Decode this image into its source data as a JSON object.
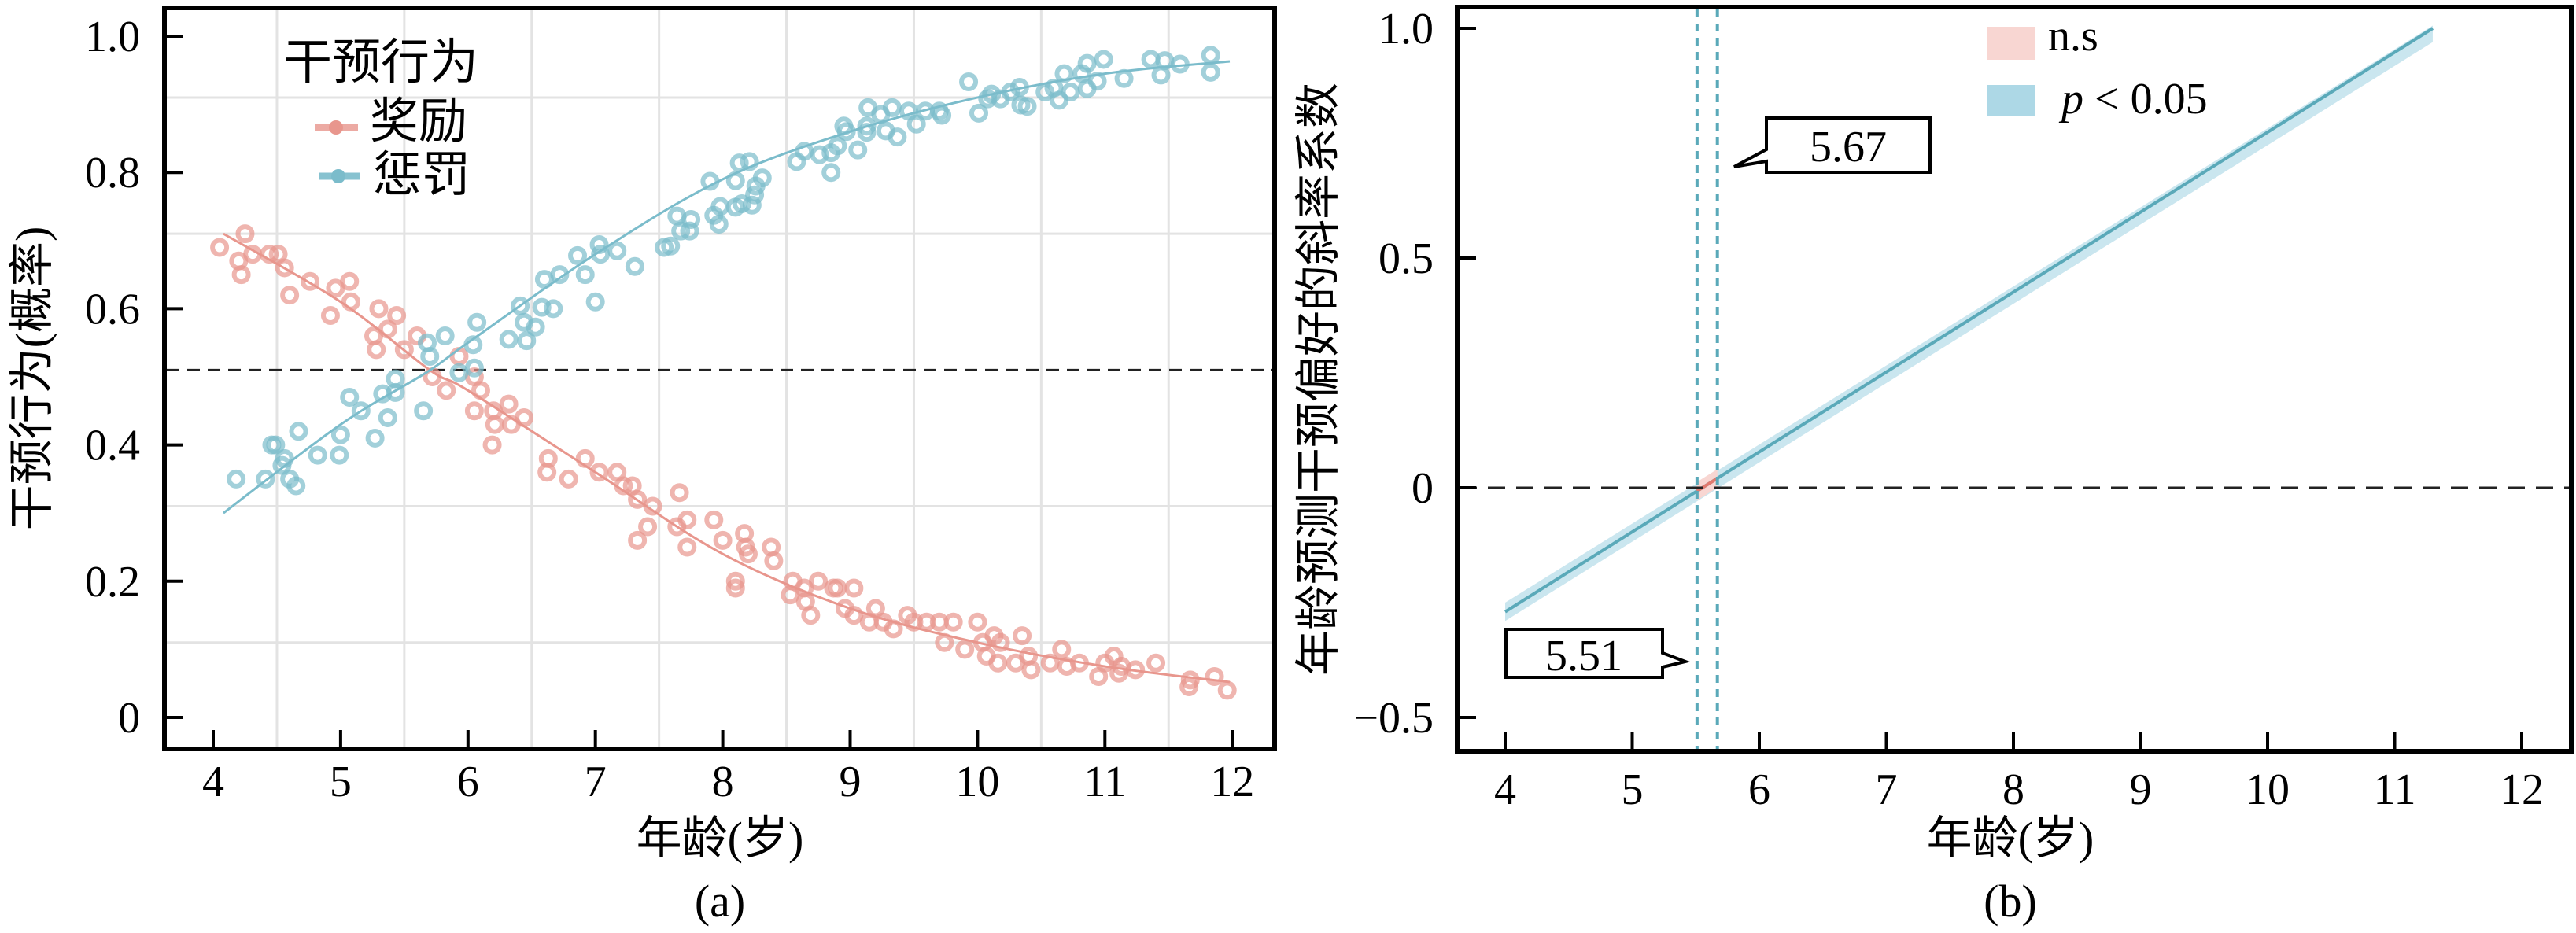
{
  "colors": {
    "reward": "#e8968d",
    "punish": "#7bbccb",
    "ns_band": "#f8d6d2",
    "sig_band": "#add8e6",
    "sig_line": "#5aa9b9"
  },
  "chart_data": [
    {
      "type": "scatter",
      "panel_label": "(a)",
      "xlabel": "年龄(岁)",
      "ylabel": "干预行为(概率)",
      "xlim": [
        3.7,
        12.4
      ],
      "ylim": [
        -0.02,
        1.06
      ],
      "xticks": [
        "4",
        "5",
        "6",
        "7",
        "8",
        "9",
        "10",
        "11",
        "12"
      ],
      "yticks": [
        "0",
        "0.2",
        "0.4",
        "0.6",
        "0.8",
        "1.0"
      ],
      "grid": true,
      "reference_line_y": 0.51,
      "legend": {
        "title": "干预行为",
        "position": "top-left",
        "entries": [
          "奖励",
          "惩罚"
        ]
      },
      "series": [
        {
          "name": "奖励",
          "fit": [
            [
              4.08,
              0.71
            ],
            [
              5,
              0.61
            ],
            [
              5.7,
              0.51
            ],
            [
              6,
              0.48
            ],
            [
              7,
              0.36
            ],
            [
              8,
              0.24
            ],
            [
              9,
              0.16
            ],
            [
              10,
              0.11
            ],
            [
              11,
              0.075
            ],
            [
              11.98,
              0.052
            ]
          ],
          "points": [
            [
              4.05,
              0.69
            ],
            [
              4.25,
              0.71
            ],
            [
              4.2,
              0.67
            ],
            [
              4.22,
              0.65
            ],
            [
              4.31,
              0.68
            ],
            [
              4.44,
              0.68
            ],
            [
              4.51,
              0.68
            ],
            [
              4.56,
              0.66
            ],
            [
              4.6,
              0.62
            ],
            [
              4.76,
              0.64
            ],
            [
              4.96,
              0.63
            ],
            [
              5.07,
              0.64
            ],
            [
              5.08,
              0.61
            ],
            [
              4.92,
              0.59
            ],
            [
              5.3,
              0.6
            ],
            [
              5.44,
              0.59
            ],
            [
              5.26,
              0.56
            ],
            [
              5.28,
              0.54
            ],
            [
              5.37,
              0.57
            ],
            [
              5.5,
              0.54
            ],
            [
              5.6,
              0.56
            ],
            [
              5.72,
              0.5
            ],
            [
              5.83,
              0.48
            ],
            [
              5.93,
              0.53
            ],
            [
              6.05,
              0.5
            ],
            [
              6.1,
              0.48
            ],
            [
              6.05,
              0.45
            ],
            [
              6.2,
              0.45
            ],
            [
              6.32,
              0.46
            ],
            [
              6.21,
              0.43
            ],
            [
              6.44,
              0.44
            ],
            [
              6.19,
              0.4
            ],
            [
              6.34,
              0.43
            ],
            [
              6.63,
              0.38
            ],
            [
              6.62,
              0.36
            ],
            [
              6.79,
              0.35
            ],
            [
              6.92,
              0.38
            ],
            [
              7.03,
              0.36
            ],
            [
              7.17,
              0.36
            ],
            [
              7.22,
              0.34
            ],
            [
              7.29,
              0.34
            ],
            [
              7.33,
              0.32
            ],
            [
              7.45,
              0.31
            ],
            [
              7.66,
              0.33
            ],
            [
              7.41,
              0.28
            ],
            [
              7.33,
              0.26
            ],
            [
              7.64,
              0.28
            ],
            [
              7.72,
              0.29
            ],
            [
              7.72,
              0.25
            ],
            [
              7.93,
              0.29
            ],
            [
              8.0,
              0.26
            ],
            [
              8.17,
              0.27
            ],
            [
              8.18,
              0.25
            ],
            [
              8.2,
              0.24
            ],
            [
              8.38,
              0.25
            ],
            [
              8.4,
              0.23
            ],
            [
              8.1,
              0.2
            ],
            [
              8.1,
              0.19
            ],
            [
              8.55,
              0.2
            ],
            [
              8.53,
              0.18
            ],
            [
              8.64,
              0.19
            ],
            [
              8.65,
              0.17
            ],
            [
              8.69,
              0.15
            ],
            [
              8.75,
              0.2
            ],
            [
              8.87,
              0.19
            ],
            [
              8.9,
              0.19
            ],
            [
              9.03,
              0.19
            ],
            [
              8.96,
              0.16
            ],
            [
              9.03,
              0.15
            ],
            [
              9.15,
              0.14
            ],
            [
              9.2,
              0.16
            ],
            [
              9.26,
              0.14
            ],
            [
              9.34,
              0.13
            ],
            [
              9.45,
              0.15
            ],
            [
              9.5,
              0.14
            ],
            [
              9.6,
              0.14
            ],
            [
              9.7,
              0.14
            ],
            [
              9.81,
              0.14
            ],
            [
              9.74,
              0.11
            ],
            [
              9.9,
              0.1
            ],
            [
              10.0,
              0.14
            ],
            [
              10.04,
              0.11
            ],
            [
              10.13,
              0.12
            ],
            [
              10.18,
              0.11
            ],
            [
              10.07,
              0.09
            ],
            [
              10.16,
              0.08
            ],
            [
              10.35,
              0.12
            ],
            [
              10.4,
              0.09
            ],
            [
              10.3,
              0.08
            ],
            [
              10.42,
              0.07
            ],
            [
              10.66,
              0.1
            ],
            [
              10.57,
              0.08
            ],
            [
              10.7,
              0.075
            ],
            [
              10.8,
              0.08
            ],
            [
              10.95,
              0.06
            ],
            [
              11.0,
              0.08
            ],
            [
              11.07,
              0.09
            ],
            [
              11.13,
              0.075
            ],
            [
              11.11,
              0.065
            ],
            [
              11.24,
              0.07
            ],
            [
              11.4,
              0.08
            ],
            [
              11.66,
              0.045
            ],
            [
              11.67,
              0.055
            ],
            [
              11.86,
              0.06
            ],
            [
              11.96,
              0.04
            ]
          ]
        },
        {
          "name": "惩罚",
          "fit": [
            [
              4.08,
              0.3
            ],
            [
              5,
              0.43
            ],
            [
              5.67,
              0.506
            ],
            [
              6,
              0.55
            ],
            [
              7,
              0.68
            ],
            [
              8,
              0.79
            ],
            [
              9,
              0.86
            ],
            [
              10,
              0.91
            ],
            [
              11,
              0.945
            ],
            [
              11.98,
              0.963
            ]
          ],
          "points": [
            [
              4.18,
              0.35
            ],
            [
              4.41,
              0.35
            ],
            [
              4.46,
              0.4
            ],
            [
              4.49,
              0.4
            ],
            [
              4.56,
              0.38
            ],
            [
              4.54,
              0.37
            ],
            [
              4.6,
              0.35
            ],
            [
              4.65,
              0.34
            ],
            [
              4.67,
              0.42
            ],
            [
              4.82,
              0.385
            ],
            [
              4.99,
              0.385
            ],
            [
              5.0,
              0.415
            ],
            [
              5.07,
              0.47
            ],
            [
              5.16,
              0.45
            ],
            [
              5.27,
              0.41
            ],
            [
              5.37,
              0.44
            ],
            [
              5.33,
              0.475
            ],
            [
              5.43,
              0.477
            ],
            [
              5.43,
              0.497
            ],
            [
              5.65,
              0.45
            ],
            [
              5.68,
              0.55
            ],
            [
              5.7,
              0.53
            ],
            [
              5.82,
              0.56
            ],
            [
              5.93,
              0.506
            ],
            [
              6.05,
              0.513
            ],
            [
              6.04,
              0.547
            ],
            [
              6.07,
              0.58
            ],
            [
              6.32,
              0.555
            ],
            [
              6.46,
              0.553
            ],
            [
              6.44,
              0.58
            ],
            [
              6.53,
              0.573
            ],
            [
              6.41,
              0.604
            ],
            [
              6.6,
              0.643
            ],
            [
              6.58,
              0.602
            ],
            [
              6.67,
              0.6
            ],
            [
              6.72,
              0.65
            ],
            [
              6.92,
              0.65
            ],
            [
              6.86,
              0.678
            ],
            [
              7.0,
              0.61
            ],
            [
              7.03,
              0.694
            ],
            [
              7.04,
              0.68
            ],
            [
              7.17,
              0.685
            ],
            [
              7.31,
              0.662
            ],
            [
              7.54,
              0.69
            ],
            [
              7.59,
              0.692
            ],
            [
              7.64,
              0.736
            ],
            [
              7.67,
              0.714
            ],
            [
              7.74,
              0.714
            ],
            [
              7.75,
              0.731
            ],
            [
              7.9,
              0.787
            ],
            [
              7.93,
              0.737
            ],
            [
              7.97,
              0.724
            ],
            [
              7.98,
              0.75
            ],
            [
              8.1,
              0.788
            ],
            [
              8.13,
              0.814
            ],
            [
              8.21,
              0.816
            ],
            [
              8.1,
              0.749
            ],
            [
              8.15,
              0.754
            ],
            [
              8.23,
              0.752
            ],
            [
              8.25,
              0.767
            ],
            [
              8.31,
              0.792
            ],
            [
              8.26,
              0.78
            ],
            [
              8.58,
              0.816
            ],
            [
              8.64,
              0.831
            ],
            [
              8.76,
              0.826
            ],
            [
              8.85,
              0.829
            ],
            [
              8.85,
              0.8
            ],
            [
              8.9,
              0.839
            ],
            [
              8.95,
              0.868
            ],
            [
              8.97,
              0.86
            ],
            [
              9.06,
              0.833
            ],
            [
              9.13,
              0.868
            ],
            [
              9.14,
              0.895
            ],
            [
              9.13,
              0.859
            ],
            [
              9.24,
              0.885
            ],
            [
              9.28,
              0.861
            ],
            [
              9.33,
              0.895
            ],
            [
              9.37,
              0.852
            ],
            [
              9.46,
              0.89
            ],
            [
              9.52,
              0.871
            ],
            [
              9.59,
              0.89
            ],
            [
              9.7,
              0.89
            ],
            [
              9.72,
              0.884
            ],
            [
              9.93,
              0.933
            ],
            [
              10.01,
              0.887
            ],
            [
              10.08,
              0.908
            ],
            [
              10.11,
              0.915
            ],
            [
              10.18,
              0.908
            ],
            [
              10.26,
              0.918
            ],
            [
              10.33,
              0.925
            ],
            [
              10.34,
              0.899
            ],
            [
              10.39,
              0.897
            ],
            [
              10.53,
              0.918
            ],
            [
              10.6,
              0.924
            ],
            [
              10.64,
              0.906
            ],
            [
              10.68,
              0.945
            ],
            [
              10.73,
              0.918
            ],
            [
              10.82,
              0.945
            ],
            [
              10.86,
              0.923
            ],
            [
              10.86,
              0.96
            ],
            [
              10.94,
              0.934
            ],
            [
              10.99,
              0.966
            ],
            [
              11.15,
              0.938
            ],
            [
              11.36,
              0.966
            ],
            [
              11.44,
              0.943
            ],
            [
              11.47,
              0.964
            ],
            [
              11.59,
              0.959
            ],
            [
              11.83,
              0.972
            ],
            [
              11.83,
              0.947
            ]
          ]
        }
      ]
    },
    {
      "type": "line",
      "panel_label": "(b)",
      "xlabel": "年龄(岁)",
      "ylabel": "年龄预测干预偏好的斜率系数",
      "xlim": [
        3.7,
        12.4
      ],
      "ylim": [
        -0.56,
        1.08
      ],
      "xticks": [
        "4",
        "5",
        "6",
        "7",
        "8",
        "9",
        "10",
        "11",
        "12"
      ],
      "yticks": [
        "−0.5",
        "0",
        "0.5",
        "1.0"
      ],
      "ytick_values": [
        -0.5,
        0,
        0.5,
        1.0
      ],
      "grid": false,
      "reference_line_y": 0,
      "line": {
        "x": [
          4.0,
          11.3
        ],
        "y": [
          -0.27,
          1.0
        ],
        "band_halfwidth": 0.02
      },
      "ns_region": [
        5.51,
        5.67
      ],
      "annotations": [
        "5.51",
        "5.67"
      ],
      "legend": {
        "position": "top-center",
        "entries": [
          "n.s",
          "p < 0.05"
        ],
        "p_italic": "p",
        "p_rest": " < 0.05"
      }
    }
  ]
}
